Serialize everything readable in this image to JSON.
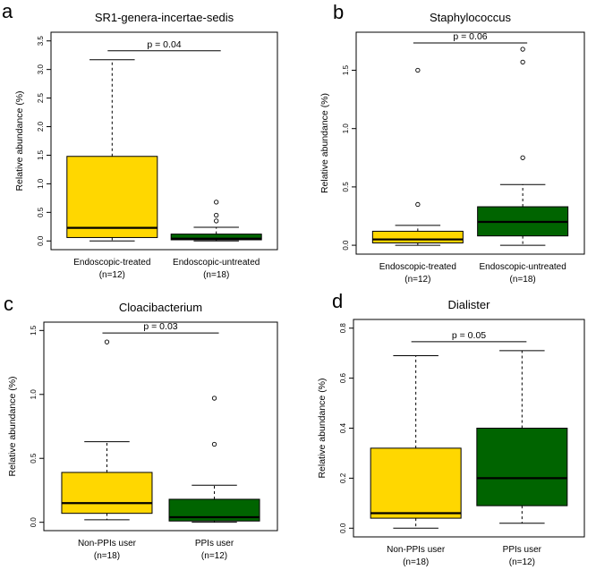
{
  "chart_data": [
    {
      "type": "boxplot",
      "panel_label": "a",
      "title": "SR1-genera-incertae-sedis",
      "ylabel": "Relative abundance  (%)",
      "ylim": [
        0,
        3.5
      ],
      "yticks": [
        0.0,
        0.5,
        1.0,
        1.5,
        2.0,
        2.5,
        3.0,
        3.5
      ],
      "ytick_labels": [
        "0.0",
        "0.5",
        "1.0",
        "1.5",
        "2.0",
        "2.5",
        "3.0",
        "3.5"
      ],
      "groups": [
        {
          "name": "Endoscopic-treated",
          "n_label": "(n=12)",
          "color": "#FFD700",
          "min": 0.0,
          "q1": 0.06,
          "median": 0.23,
          "q3": 1.48,
          "max": 3.17,
          "outliers": []
        },
        {
          "name": "Endoscopic-untreated",
          "n_label": "(n=18)",
          "color": "#006400",
          "min": 0.0,
          "q1": 0.02,
          "median": 0.04,
          "q3": 0.12,
          "max": 0.24,
          "outliers": [
            0.35,
            0.45,
            0.68
          ]
        }
      ],
      "p_value_label": "p = 0.04"
    },
    {
      "type": "boxplot",
      "panel_label": "b",
      "title": "Staphylococcus",
      "ylabel": "Relative abundance  (%)",
      "ylim": [
        0,
        1.75
      ],
      "yticks": [
        0.0,
        0.5,
        1.0,
        1.5
      ],
      "ytick_labels": [
        "0.0",
        "0.5",
        "1.0",
        "1.5"
      ],
      "groups": [
        {
          "name": "Endoscopic-treated",
          "n_label": "(n=12)",
          "color": "#FFD700",
          "min": 0.0,
          "q1": 0.02,
          "median": 0.05,
          "q3": 0.12,
          "max": 0.17,
          "outliers": [
            0.35,
            1.5
          ]
        },
        {
          "name": "Endoscopic-untreated",
          "n_label": "(n=18)",
          "color": "#006400",
          "min": 0.0,
          "q1": 0.08,
          "median": 0.2,
          "q3": 0.33,
          "max": 0.52,
          "outliers": [
            0.75,
            1.57,
            1.68
          ]
        }
      ],
      "p_value_label": "p = 0.06"
    },
    {
      "type": "boxplot",
      "panel_label": "c",
      "title": "Cloacibacterium",
      "ylabel": "Relative abundance  (%)",
      "ylim": [
        0,
        1.5
      ],
      "yticks": [
        0.0,
        0.5,
        1.0,
        1.5
      ],
      "ytick_labels": [
        "0.0",
        "0.5",
        "1.0",
        "1.5"
      ],
      "groups": [
        {
          "name": "Non-PPIs user",
          "n_label": "(n=18)",
          "color": "#FFD700",
          "min": 0.02,
          "q1": 0.07,
          "median": 0.15,
          "q3": 0.39,
          "max": 0.63,
          "outliers": [
            1.41
          ]
        },
        {
          "name": "PPIs user",
          "n_label": "(n=12)",
          "color": "#006400",
          "min": 0.0,
          "q1": 0.01,
          "median": 0.04,
          "q3": 0.18,
          "max": 0.29,
          "outliers": [
            0.61,
            0.97
          ]
        }
      ],
      "p_value_label": "p = 0.03"
    },
    {
      "type": "boxplot",
      "panel_label": "d",
      "title": "Dialister",
      "ylabel": "Relative abundance  (%)",
      "ylim": [
        0,
        0.8
      ],
      "yticks": [
        0.0,
        0.2,
        0.4,
        0.6,
        0.8
      ],
      "ytick_labels": [
        "0.0",
        "0.2",
        "0.4",
        "0.6",
        "0.8"
      ],
      "groups": [
        {
          "name": "Non-PPIs user",
          "n_label": "(n=18)",
          "color": "#FFD700",
          "min": 0.0,
          "q1": 0.04,
          "median": 0.06,
          "q3": 0.32,
          "max": 0.69,
          "outliers": []
        },
        {
          "name": "PPIs user",
          "n_label": "(n=12)",
          "color": "#006400",
          "min": 0.02,
          "q1": 0.09,
          "median": 0.2,
          "q3": 0.4,
          "max": 0.71,
          "outliers": []
        }
      ],
      "p_value_label": "p = 0.05"
    }
  ]
}
